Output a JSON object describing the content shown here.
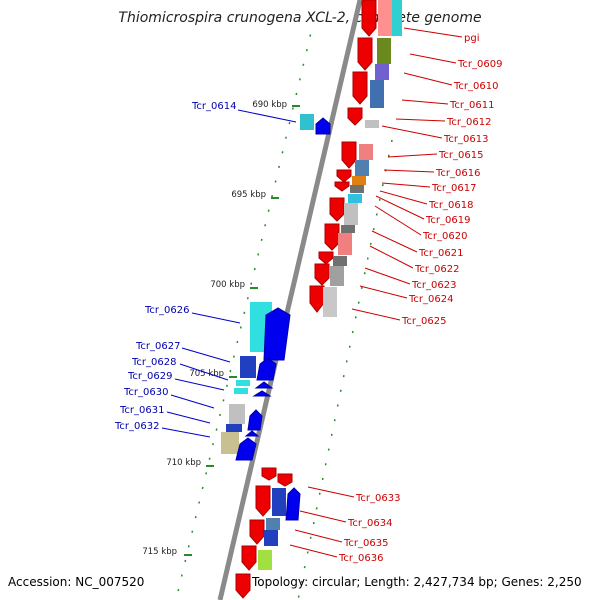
{
  "title": "Thiomicrospira crunogena XCL-2, complete genome",
  "footer": {
    "accession": "Accession: NC_007520",
    "summary": "Topology: circular; Length: 2,427,734 bp; Genes: 2,250"
  },
  "scale_labels": [
    "690 kbp",
    "695 kbp",
    "700 kbp",
    "705 kbp",
    "710 kbp",
    "715 kbp"
  ],
  "left_genes": [
    "Tcr_0614",
    "Tcr_0626",
    "Tcr_0627",
    "Tcr_0628",
    "Tcr_0629",
    "Tcr_0630",
    "Tcr_0631",
    "Tcr_0632"
  ],
  "right_genes": [
    "pgi",
    "Tcr_0609",
    "Tcr_0610",
    "Tcr_0611",
    "Tcr_0612",
    "Tcr_0613",
    "Tcr_0615",
    "Tcr_0616",
    "Tcr_0617",
    "Tcr_0618",
    "Tcr_0619",
    "Tcr_0620",
    "Tcr_0621",
    "Tcr_0622",
    "Tcr_0623",
    "Tcr_0624",
    "Tcr_0625",
    "Tcr_0633",
    "Tcr_0634",
    "Tcr_0635",
    "Tcr_0636"
  ],
  "colors": {
    "backbone": "#888888",
    "forward_gene": "#0000ee",
    "reverse_gene": "#ee0000",
    "forward_label": "#0000aa",
    "reverse_label": "#cc0000",
    "tick": "#228822"
  }
}
